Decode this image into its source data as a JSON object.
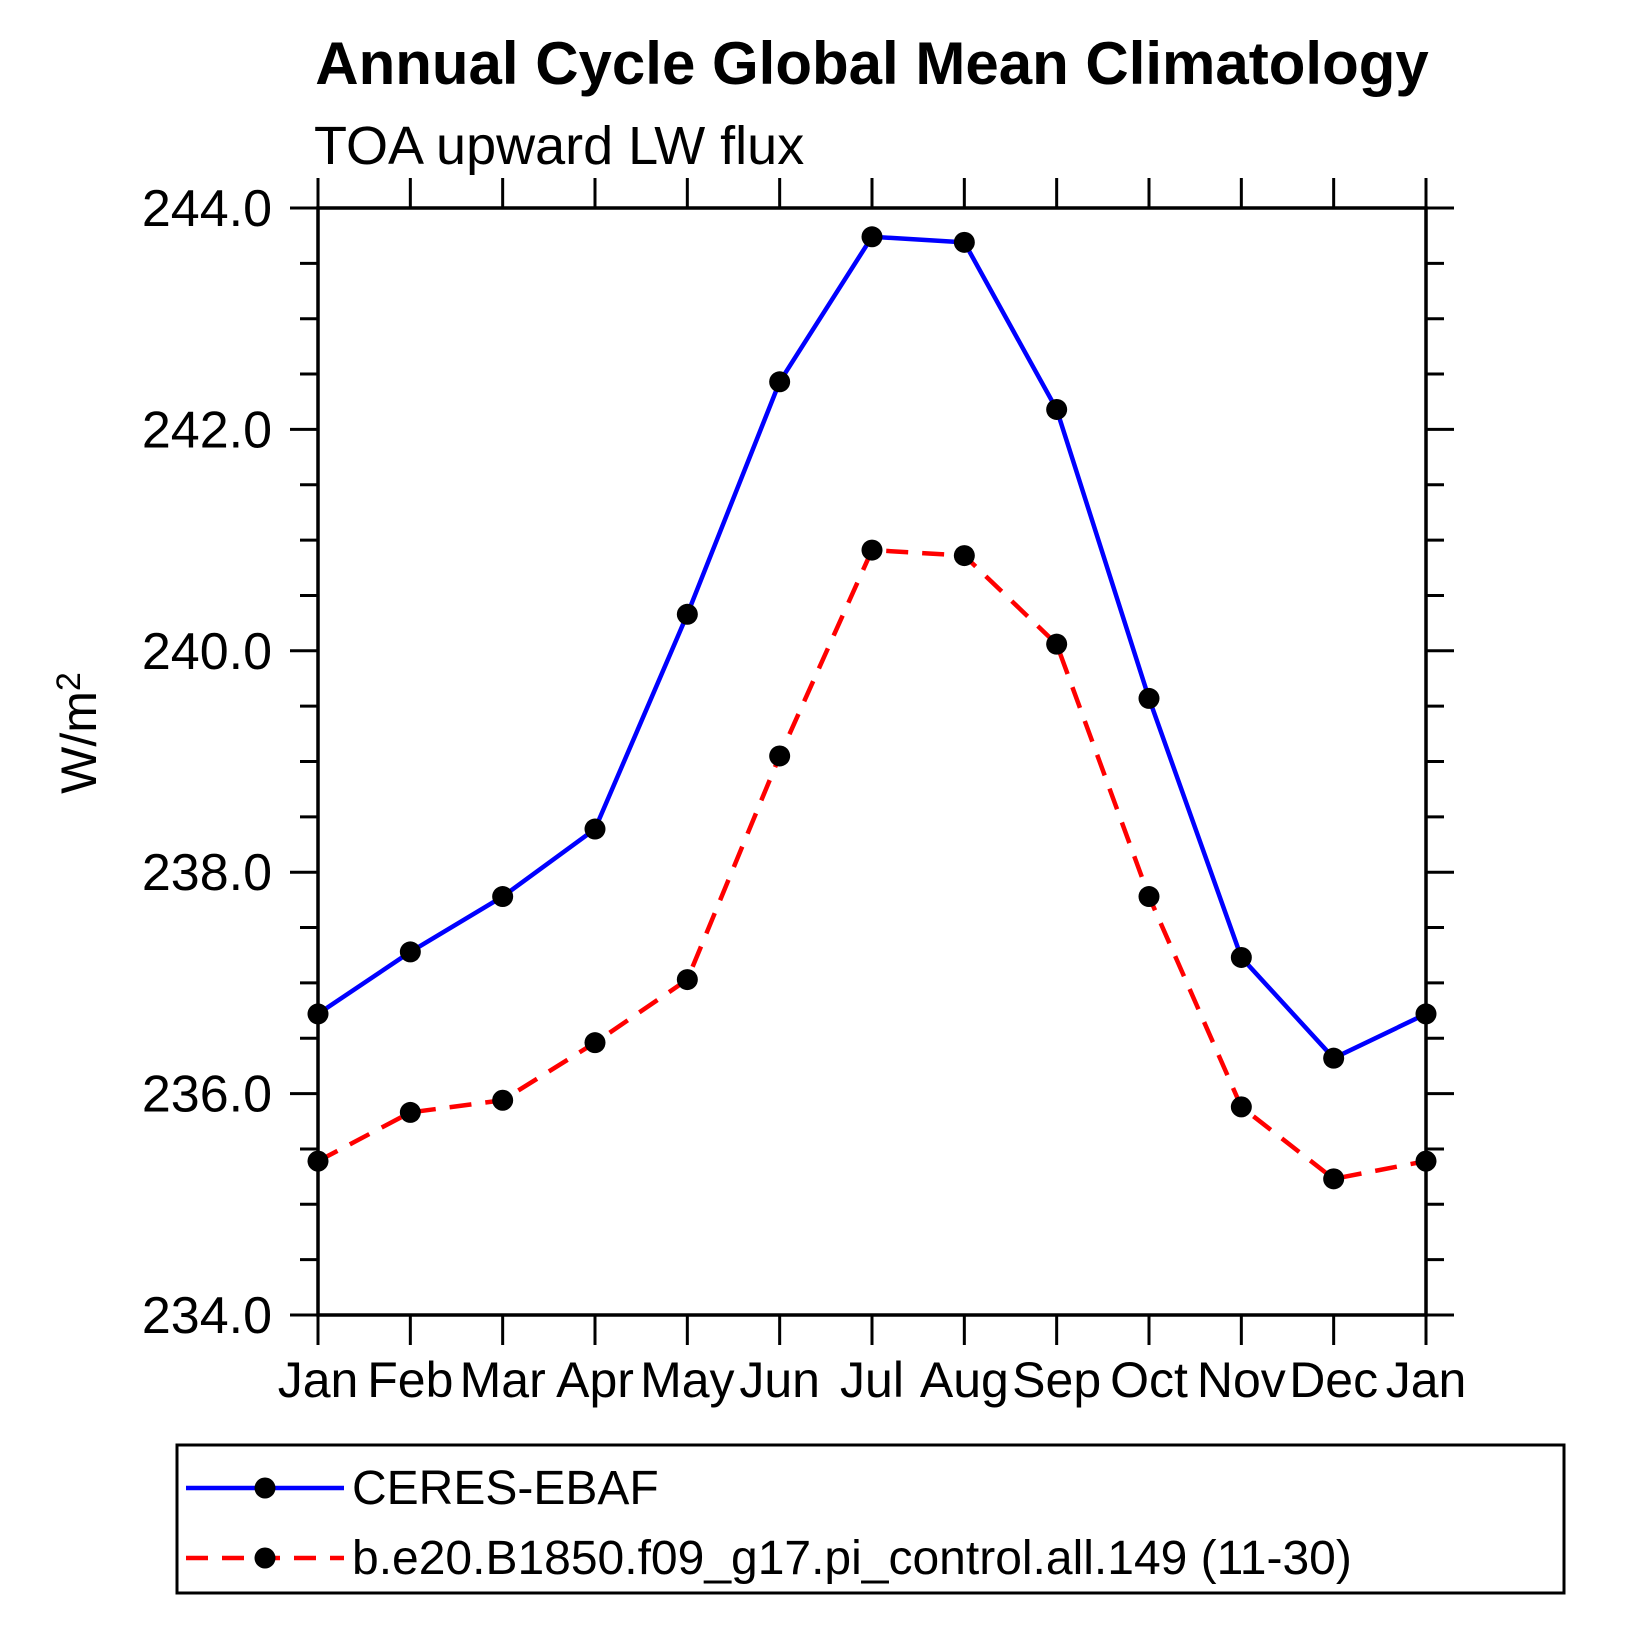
{
  "page": {
    "background": "#ffffff"
  },
  "chart": {
    "title": "Annual Cycle Global Mean Climatology",
    "subtitle": "TOA upward LW flux",
    "ylabel_base": "W/m",
    "ylabel_sup": "2"
  },
  "legend": {
    "items": [
      {
        "label": "CERES-EBAF"
      },
      {
        "label": "b.e20.B1850.f09_g17.pi_control.all.149 (11-30)"
      }
    ]
  },
  "chart_data": {
    "type": "line",
    "title": "Annual Cycle Global Mean Climatology",
    "subtitle": "TOA upward LW flux",
    "xlabel": "",
    "ylabel": "W/m^2",
    "categories": [
      "Jan",
      "Feb",
      "Mar",
      "Apr",
      "May",
      "Jun",
      "Jul",
      "Aug",
      "Sep",
      "Oct",
      "Nov",
      "Dec",
      "Jan"
    ],
    "ylim": [
      234.0,
      244.0
    ],
    "y_major_step": 2.0,
    "y_minor_step": 0.5,
    "y_tick_labels": [
      "244.0",
      "242.0",
      "240.0",
      "238.0",
      "236.0",
      "234.0"
    ],
    "grid": false,
    "legend_position": "bottom",
    "marker_color": "#000000",
    "axis_color": "#000000",
    "series": [
      {
        "name": "CERES-EBAF",
        "color": "#0000ff",
        "style": "solid",
        "marker": "circle",
        "values": [
          236.72,
          237.28,
          237.78,
          238.39,
          240.33,
          242.43,
          243.74,
          243.69,
          242.18,
          239.57,
          237.23,
          236.32,
          236.72
        ]
      },
      {
        "name": "b.e20.B1850.f09_g17.pi_control.all.149 (11-30)",
        "color": "#ff0000",
        "style": "dashed",
        "marker": "circle",
        "values": [
          235.39,
          235.83,
          235.94,
          236.46,
          237.03,
          239.05,
          240.91,
          240.86,
          240.06,
          237.78,
          235.88,
          235.23,
          235.39
        ]
      }
    ]
  }
}
